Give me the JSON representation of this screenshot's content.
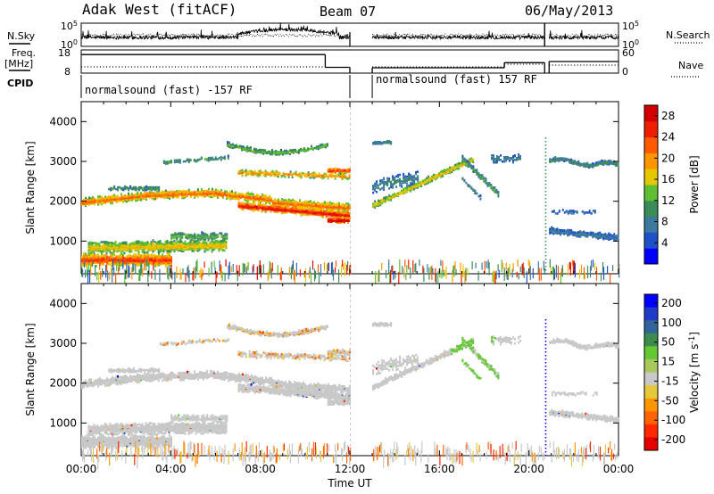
{
  "header": {
    "site": "Adak West (fitACF)",
    "beam": "Beam 07",
    "date": "06/May/2013"
  },
  "panel_labels": {
    "nsky": "N.Sky",
    "nsearch": "N.Search",
    "freq": "Freq.",
    "freq_unit": "[MHz]",
    "nave": "Nave",
    "cpid": "CPID"
  },
  "cpid_programs": [
    {
      "label": "normalsound (fast) -157 RF",
      "start_h": 0.0,
      "end_h": 12.0
    },
    {
      "label": "normalsound (fast) 157 RF",
      "start_h": 13.0,
      "end_h": 24.0
    }
  ],
  "colors": {
    "power": [
      "#0000ff",
      "#1e50c8",
      "#3c78a0",
      "#3c8c5a",
      "#5fbe32",
      "#e6c800",
      "#ff9600",
      "#ff5a00",
      "#f01e00",
      "#d20000"
    ],
    "velocity": [
      "#0000ff",
      "#1e3cc8",
      "#32649b",
      "#3c8c50",
      "#64c832",
      "#a8c85a",
      "#c8c8c8",
      "#e6c83c",
      "#ff9600",
      "#ff6400",
      "#ff2800",
      "#e60000"
    ]
  },
  "chart_data": [
    {
      "type": "line",
      "name": "nsky_nsearch",
      "ylabel_left": "N.Sky",
      "ylabel_right": "N.Search",
      "yticks_left": [
        "10^5",
        "10^0"
      ],
      "yticks_right": [
        "10^5",
        "10^0"
      ],
      "gaps_h": [
        [
          12.0,
          13.0
        ],
        [
          20.7,
          20.9
        ]
      ]
    },
    {
      "type": "line",
      "name": "freq_nave",
      "yticks_left": [
        "18",
        "8"
      ],
      "yticks_right": [
        "60",
        "0"
      ],
      "ylim_left": [
        8,
        18
      ],
      "freq_segments": [
        {
          "x": [
            0.0,
            10.9
          ],
          "y": 16.0
        },
        {
          "x": [
            10.9,
            12.0
          ],
          "y": 10.5
        },
        {
          "x": [
            13.0,
            18.9
          ],
          "y": 10.3
        },
        {
          "x": [
            18.9,
            20.7
          ],
          "y": 12.5
        },
        {
          "x": [
            20.9,
            24.0
          ],
          "y": 13.0
        }
      ]
    },
    {
      "type": "heatmap",
      "name": "power",
      "ylabel": "Slant Range [km]",
      "yticks": [
        1000,
        2000,
        3000,
        4000
      ],
      "ylim": [
        180,
        4500
      ],
      "colorbar_label": "Power [dB]",
      "colorbar_ticks": [
        4,
        8,
        12,
        16,
        20,
        24,
        28
      ],
      "clim": [
        0,
        30
      ]
    },
    {
      "type": "heatmap",
      "name": "velocity",
      "ylabel": "Slant Range [km]",
      "yticks": [
        1000,
        2000,
        3000,
        4000
      ],
      "ylim": [
        180,
        4500
      ],
      "colorbar_label": "Velocity [m s^-1]",
      "colorbar_ticks": [
        200,
        100,
        50,
        15,
        -15,
        -50,
        -100,
        -200
      ]
    }
  ],
  "time_axis": {
    "label": "Time UT",
    "ticks": [
      "00:00",
      "04:00",
      "08:00",
      "12:00",
      "16:00",
      "20:00",
      "00:00"
    ],
    "xlim_h": [
      0,
      24
    ]
  }
}
